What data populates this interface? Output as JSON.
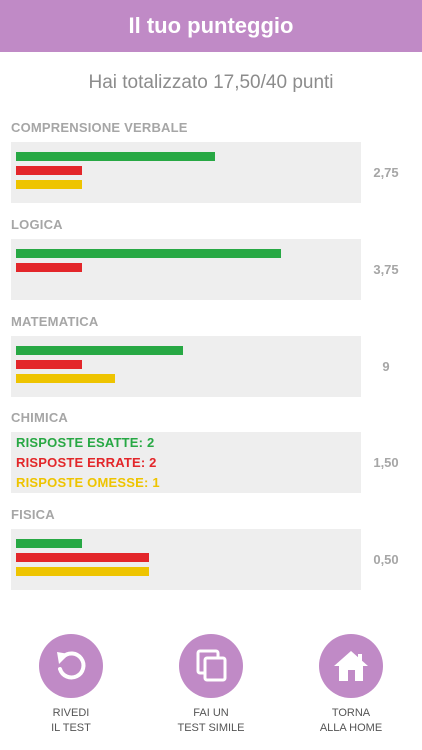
{
  "header": {
    "title": "Il tuo punteggio"
  },
  "summary": {
    "text": "Hai totalizzato 17,50/40 punti"
  },
  "colors": {
    "accent": "#c08ac6",
    "correct": "#27a844",
    "wrong": "#e3262a",
    "omitted": "#eec400"
  },
  "sections": [
    {
      "title": "COMPRENSIONE VERBALE",
      "score": "2,75",
      "bars": [
        {
          "kind": "correct",
          "fraction": 0.585
        },
        {
          "kind": "wrong",
          "fraction": 0.195
        },
        {
          "kind": "omitted",
          "fraction": 0.195
        }
      ]
    },
    {
      "title": "LOGICA",
      "score": "3,75",
      "bars": [
        {
          "kind": "correct",
          "fraction": 0.78
        },
        {
          "kind": "wrong",
          "fraction": 0.195
        }
      ]
    },
    {
      "title": "MATEMATICA",
      "score": "9",
      "bars": [
        {
          "kind": "correct",
          "fraction": 0.49
        },
        {
          "kind": "wrong",
          "fraction": 0.195
        },
        {
          "kind": "omitted",
          "fraction": 0.29
        }
      ]
    },
    {
      "title": "CHIMICA",
      "score": "1,50",
      "details": [
        {
          "kind": "correct",
          "text": "RISPOSTE ESATTE: 2"
        },
        {
          "kind": "wrong",
          "text": "RISPOSTE ERRATE: 2"
        },
        {
          "kind": "omitted",
          "text": "RISPOSTE OMESSE: 1"
        }
      ]
    },
    {
      "title": "FISICA",
      "score": "0,50",
      "bars": [
        {
          "kind": "correct",
          "fraction": 0.195
        },
        {
          "kind": "wrong",
          "fraction": 0.39
        },
        {
          "kind": "omitted",
          "fraction": 0.39
        }
      ]
    }
  ],
  "actions": [
    {
      "icon": "review-icon",
      "line1": "RIVEDI",
      "line2": "IL TEST"
    },
    {
      "icon": "copy-icon",
      "line1": "FAI UN",
      "line2": "TEST SIMILE"
    },
    {
      "icon": "home-icon",
      "line1": "TORNA",
      "line2": "ALLA HOME"
    }
  ]
}
